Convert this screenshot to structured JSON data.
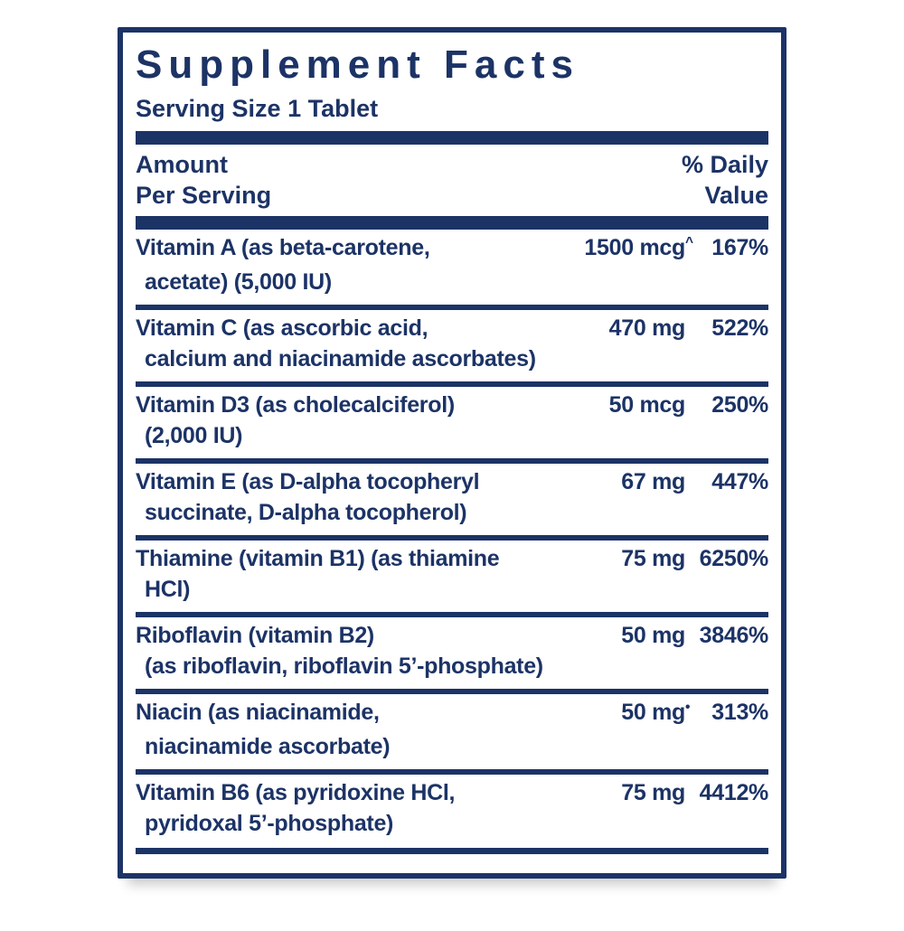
{
  "label": {
    "title": "Supplement Facts",
    "serving_size": "Serving Size 1 Tablet",
    "columns": {
      "amount_line1": "Amount",
      "amount_line2": "Per Serving",
      "dv_line1": "% Daily",
      "dv_line2": "Value"
    },
    "rows": [
      {
        "name1": "Vitamin A (as beta-carotene,",
        "name2": "acetate) (5,000 IU)",
        "amount": "1500 mcg",
        "mark": "^",
        "dv": "167%"
      },
      {
        "name1": "Vitamin C (as ascorbic acid,",
        "name2": "calcium and niacinamide ascorbates)",
        "amount": "470 mg",
        "mark": "",
        "dv": "522%"
      },
      {
        "name1": "Vitamin D3 (as cholecalciferol)",
        "name2": "(2,000 IU)",
        "amount": "50 mcg",
        "mark": "",
        "dv": "250%"
      },
      {
        "name1": "Vitamin E (as D-alpha tocopheryl",
        "name2": "succinate, D-alpha tocopherol)",
        "amount": "67 mg",
        "mark": "",
        "dv": "447%"
      },
      {
        "name1": "Thiamine (vitamin B1) (as thiamine",
        "name2": "HCl)",
        "amount": "75 mg",
        "mark": "",
        "dv": "6250%"
      },
      {
        "name1": "Riboflavin (vitamin B2)",
        "name2": "(as riboflavin, riboflavin 5’-phosphate)",
        "amount": "50 mg",
        "mark": "",
        "dv": "3846%"
      },
      {
        "name1": "Niacin (as niacinamide,",
        "name2": "niacinamide ascorbate)",
        "amount": "50 mg",
        "mark": "•",
        "dv": "313%"
      },
      {
        "name1": "Vitamin B6 (as pyridoxine HCl,",
        "name2": "pyridoxal 5’-phosphate)",
        "amount": "75 mg",
        "mark": "",
        "dv": "4412%"
      }
    ],
    "colors": {
      "navy": "#1c3366",
      "background": "#ffffff"
    }
  }
}
